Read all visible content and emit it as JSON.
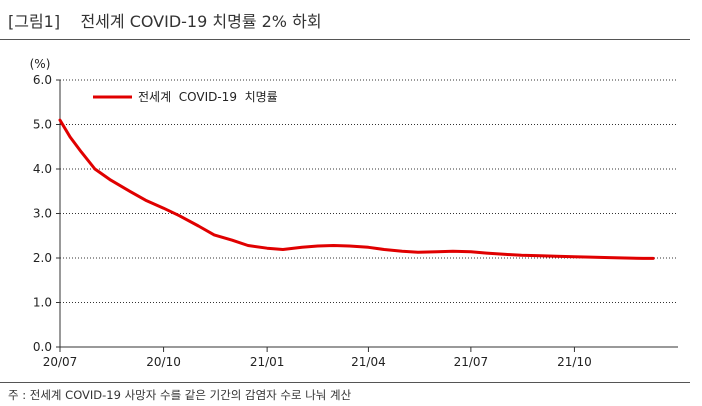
{
  "figure": {
    "title": "[그림1]    전세계 COVID-19 치명률 2% 하회",
    "note": "주 : 전세계 COVID-19 사망자 수를 같은 기간의 감염자 수로 나눠 계산"
  },
  "colors": {
    "series": "#e00000",
    "grid": "#333333",
    "axis": "#333333"
  },
  "chart_data": {
    "type": "line",
    "title": "",
    "ylabel": "(%)",
    "xlabel": "",
    "ylim": [
      0,
      6
    ],
    "yticks": [
      "0.0",
      "1.0",
      "2.0",
      "3.0",
      "4.0",
      "5.0",
      "6.0"
    ],
    "xlim": [
      "2020-07-01",
      "2022-01-01"
    ],
    "xticks": [
      {
        "date": "2020-07-01",
        "label": "20/07"
      },
      {
        "date": "2020-10-01",
        "label": "20/10"
      },
      {
        "date": "2021-01-01",
        "label": "21/01"
      },
      {
        "date": "2021-04-01",
        "label": "21/04"
      },
      {
        "date": "2021-07-01",
        "label": "21/07"
      },
      {
        "date": "2021-10-01",
        "label": "21/10"
      }
    ],
    "grid": "horizontal dotted",
    "legend_position": "top-left",
    "series": [
      {
        "name": "전세계  COVID-19  치명률",
        "points": [
          [
            "2020-07-01",
            5.1
          ],
          [
            "2020-07-10",
            4.72
          ],
          [
            "2020-07-20",
            4.38
          ],
          [
            "2020-08-01",
            4.0
          ],
          [
            "2020-08-15",
            3.75
          ],
          [
            "2020-09-01",
            3.5
          ],
          [
            "2020-09-15",
            3.3
          ],
          [
            "2020-10-01",
            3.12
          ],
          [
            "2020-10-15",
            2.95
          ],
          [
            "2020-11-01",
            2.72
          ],
          [
            "2020-11-15",
            2.52
          ],
          [
            "2020-12-01",
            2.4
          ],
          [
            "2020-12-15",
            2.28
          ],
          [
            "2021-01-01",
            2.22
          ],
          [
            "2021-01-15",
            2.19
          ],
          [
            "2021-02-01",
            2.24
          ],
          [
            "2021-02-15",
            2.27
          ],
          [
            "2021-03-01",
            2.28
          ],
          [
            "2021-03-15",
            2.27
          ],
          [
            "2021-04-01",
            2.24
          ],
          [
            "2021-04-15",
            2.19
          ],
          [
            "2021-05-01",
            2.15
          ],
          [
            "2021-05-15",
            2.13
          ],
          [
            "2021-06-01",
            2.14
          ],
          [
            "2021-06-15",
            2.15
          ],
          [
            "2021-07-01",
            2.14
          ],
          [
            "2021-07-15",
            2.11
          ],
          [
            "2021-08-01",
            2.08
          ],
          [
            "2021-08-15",
            2.06
          ],
          [
            "2021-09-01",
            2.05
          ],
          [
            "2021-09-15",
            2.04
          ],
          [
            "2021-10-01",
            2.03
          ],
          [
            "2021-10-15",
            2.02
          ],
          [
            "2021-11-01",
            2.01
          ],
          [
            "2021-11-15",
            2.0
          ],
          [
            "2021-12-01",
            1.99
          ],
          [
            "2021-12-10",
            1.99
          ]
        ]
      }
    ]
  }
}
